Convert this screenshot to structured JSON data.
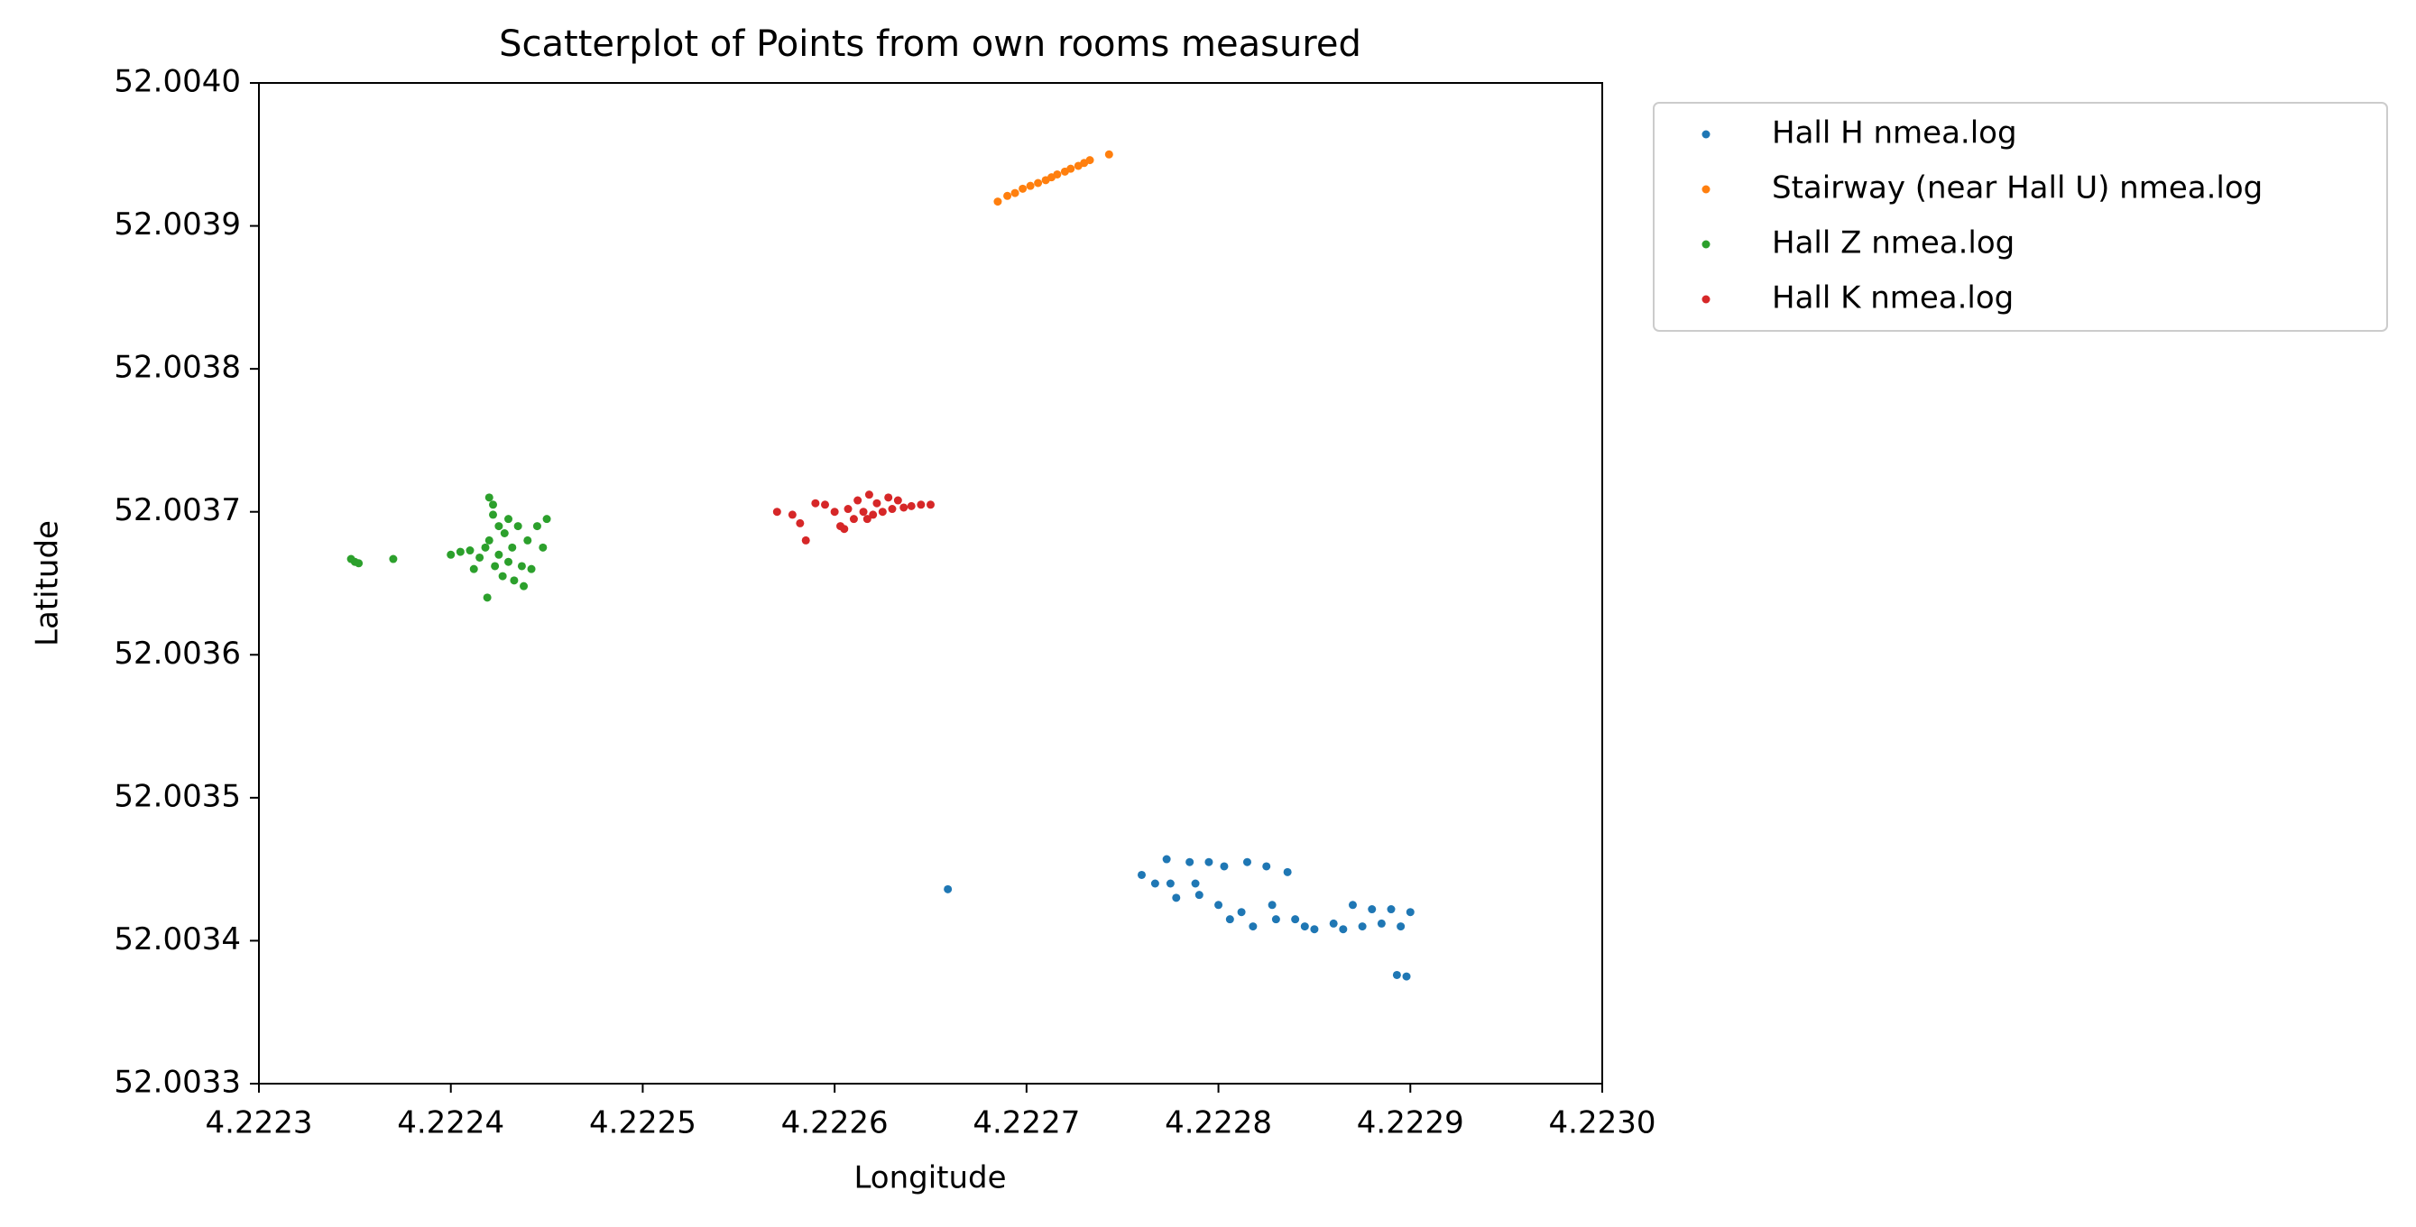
{
  "chart_data": {
    "type": "scatter",
    "title": "Scatterplot of Points from own rooms measured",
    "x_label": "Longitude",
    "y_label": "Latitude",
    "xlim": [
      4.2223,
      4.223
    ],
    "xticks": [
      4.2223,
      4.2224,
      4.2225,
      4.2226,
      4.2227,
      4.2228,
      4.2229,
      {
        "value": 4.223,
        "label": "4.2230"
      }
    ],
    "ylim": [
      52.0033,
      52.004
    ],
    "yticks": [
      52.0033,
      52.0034,
      52.0035,
      52.0036,
      52.0037,
      52.0038,
      52.0039,
      {
        "value": 52.004,
        "label": "52.0040"
      }
    ],
    "grid": false,
    "legend": "outside upper right",
    "series": [
      {
        "name": "Hall H nmea.log",
        "color": "#1f77b4",
        "x": [
          4.222767,
          4.222773,
          4.222775,
          4.222778,
          4.222785,
          4.22279,
          4.222795,
          4.2228,
          4.222803,
          4.222806,
          4.222812,
          4.222815,
          4.222818,
          4.222825,
          4.222828,
          4.22283,
          4.222836,
          4.22284,
          4.222845,
          4.22285,
          4.22286,
          4.222865,
          4.22287,
          4.222875,
          4.22288,
          4.222885,
          4.22289,
          4.222895,
          4.2229,
          4.222893,
          4.222898,
          4.222659,
          4.222788,
          4.22276
        ],
        "values": [
          52.00344,
          52.003457,
          52.00344,
          52.00343,
          52.003455,
          52.003432,
          52.003455,
          52.003425,
          52.003452,
          52.003415,
          52.00342,
          52.003455,
          52.00341,
          52.003452,
          52.003425,
          52.003415,
          52.003448,
          52.003415,
          52.00341,
          52.003408,
          52.003412,
          52.003408,
          52.003425,
          52.00341,
          52.003422,
          52.003412,
          52.003422,
          52.00341,
          52.00342,
          52.003376,
          52.003375,
          52.003436,
          52.00344,
          52.003446
        ]
      },
      {
        "name": "Stairway (near Hall U) nmea.log",
        "color": "#ff7f0e",
        "x": [
          4.222685,
          4.22269,
          4.222694,
          4.222698,
          4.222702,
          4.222706,
          4.22271,
          4.222713,
          4.222716,
          4.22272,
          4.222723,
          4.222727,
          4.22273,
          4.222733,
          4.222743
        ],
        "values": [
          52.003917,
          52.003921,
          52.003923,
          52.003926,
          52.003928,
          52.00393,
          52.003932,
          52.003934,
          52.003936,
          52.003938,
          52.00394,
          52.003942,
          52.003944,
          52.003946,
          52.00395
        ]
      },
      {
        "name": "Hall Z nmea.log",
        "color": "#2ca02c",
        "x": [
          4.222348,
          4.22235,
          4.222352,
          4.22237,
          4.2224,
          4.222405,
          4.22241,
          4.222412,
          4.222415,
          4.222418,
          4.22242,
          4.22242,
          4.222422,
          4.222423,
          4.222425,
          4.222425,
          4.222427,
          4.222428,
          4.22243,
          4.22243,
          4.222432,
          4.222433,
          4.222435,
          4.222437,
          4.22244,
          4.222442,
          4.222445,
          4.222448,
          4.22245,
          4.222438,
          4.222422,
          4.222419
        ],
        "values": [
          52.003667,
          52.003665,
          52.003664,
          52.003667,
          52.00367,
          52.003672,
          52.003673,
          52.00366,
          52.003668,
          52.003675,
          52.00371,
          52.00368,
          52.003705,
          52.003662,
          52.00369,
          52.00367,
          52.003655,
          52.003685,
          52.003695,
          52.003665,
          52.003675,
          52.003652,
          52.00369,
          52.003662,
          52.00368,
          52.00366,
          52.00369,
          52.003675,
          52.003695,
          52.003648,
          52.003698,
          52.00364
        ]
      },
      {
        "name": "Hall K nmea.log",
        "color": "#d62728",
        "x": [
          4.22257,
          4.222578,
          4.222582,
          4.222585,
          4.222595,
          4.2226,
          4.222603,
          4.222607,
          4.22261,
          4.222612,
          4.222615,
          4.222618,
          4.22262,
          4.222622,
          4.222625,
          4.222628,
          4.22263,
          4.222633,
          4.222636,
          4.22264,
          4.222645,
          4.22265,
          4.222617,
          4.22259,
          4.222605
        ],
        "values": [
          52.0037,
          52.003698,
          52.003692,
          52.00368,
          52.003705,
          52.0037,
          52.00369,
          52.003702,
          52.003695,
          52.003708,
          52.0037,
          52.003712,
          52.003698,
          52.003706,
          52.0037,
          52.00371,
          52.003702,
          52.003708,
          52.003703,
          52.003704,
          52.003705,
          52.003705,
          52.003695,
          52.003706,
          52.003688
        ]
      }
    ]
  }
}
